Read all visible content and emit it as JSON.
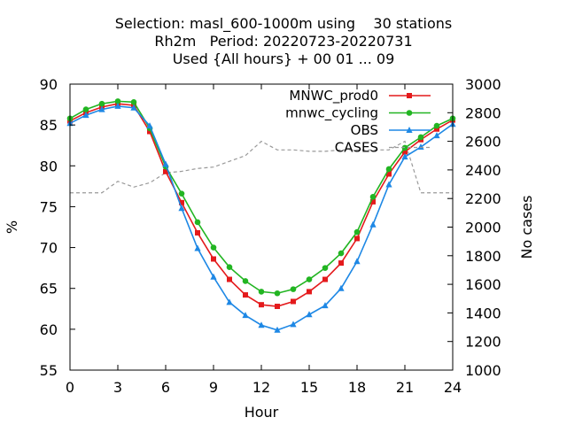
{
  "title_lines": [
    "Selection: masl_600-1000m using    30 stations",
    "Rh2m   Period: 20220723-20220731",
    "Used {All hours} + 00 01 ... 09"
  ],
  "colors": {
    "MNWC_prod0": "#e41a1c",
    "mnwc_cycling": "#22b522",
    "OBS": "#1e88e5",
    "CASES": "#999999"
  },
  "chart_data": {
    "type": "line",
    "xlabel": "Hour",
    "ylabel": "%",
    "y2label": "No cases",
    "xlim": [
      0,
      24
    ],
    "ylim": [
      55,
      90
    ],
    "y2lim": [
      1000,
      3000
    ],
    "xticks": [
      0,
      3,
      6,
      9,
      12,
      15,
      18,
      21,
      24
    ],
    "yticks": [
      55,
      60,
      65,
      70,
      75,
      80,
      85,
      90
    ],
    "y2ticks": [
      1000,
      1200,
      1400,
      1600,
      1800,
      2000,
      2200,
      2400,
      2600,
      2800,
      3000
    ],
    "grid": false,
    "legend_position": "top-right",
    "x": [
      0,
      1,
      2,
      3,
      4,
      5,
      6,
      7,
      8,
      9,
      10,
      11,
      12,
      13,
      14,
      15,
      16,
      17,
      18,
      19,
      20,
      21,
      22,
      23,
      24
    ],
    "series": [
      {
        "name": "MNWC_prod0",
        "axis": "y",
        "marker": "square",
        "values": [
          85.5,
          86.5,
          87.2,
          87.6,
          87.4,
          84.2,
          79.3,
          75.5,
          71.8,
          68.6,
          66.1,
          64.2,
          63.0,
          62.8,
          63.4,
          64.6,
          66.1,
          68.1,
          71.1,
          75.6,
          79.0,
          81.7,
          83.2,
          84.5,
          85.6
        ]
      },
      {
        "name": "mnwc_cycling",
        "axis": "y",
        "marker": "circle",
        "values": [
          85.8,
          86.9,
          87.6,
          87.9,
          87.8,
          84.6,
          79.9,
          76.6,
          73.1,
          70.0,
          67.6,
          65.9,
          64.6,
          64.4,
          64.9,
          66.1,
          67.5,
          69.3,
          71.9,
          76.2,
          79.6,
          82.2,
          83.5,
          84.9,
          85.8
        ]
      },
      {
        "name": "OBS",
        "axis": "y",
        "marker": "triangle",
        "values": [
          85.2,
          86.2,
          86.9,
          87.3,
          87.1,
          84.9,
          80.2,
          74.8,
          69.9,
          66.4,
          63.3,
          61.7,
          60.5,
          59.9,
          60.6,
          61.8,
          62.9,
          65.0,
          68.3,
          72.8,
          77.7,
          81.1,
          82.3,
          83.7,
          85.1
        ]
      },
      {
        "name": "CASES",
        "axis": "y2",
        "marker": "none",
        "dash": true,
        "values": [
          2240,
          2240,
          2240,
          2320,
          2280,
          2310,
          2380,
          2390,
          2410,
          2420,
          2460,
          2500,
          2600,
          2540,
          2540,
          2530,
          2530,
          2540,
          2540,
          2540,
          2540,
          2600,
          2240,
          2240,
          2240
        ]
      }
    ]
  }
}
